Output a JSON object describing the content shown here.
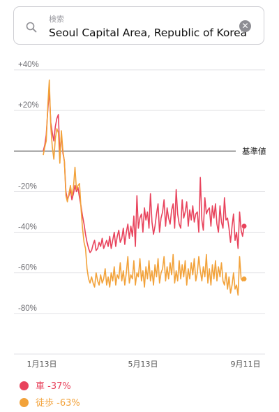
{
  "search": {
    "placeholder": "検索",
    "value": "Seoul Capital Area, Republic of Korea"
  },
  "colors": {
    "driving": "#e8435c",
    "walking": "#f2a23a",
    "baseline": "#3a3a3a",
    "grid": "#d9d9de"
  },
  "chart_data": {
    "type": "line",
    "ylim": [
      -100,
      40
    ],
    "y_ticks": [
      40,
      20,
      0,
      -20,
      -40,
      -60,
      -80,
      -100
    ],
    "y_tick_labels": [
      "+40%",
      "+20%",
      "",
      "-20%",
      "-40%",
      "-60%",
      "-80%",
      ""
    ],
    "baseline_label": "基準値",
    "x_tick_labels": [
      "1月13日",
      "5月13日",
      "9月11日"
    ],
    "series": [
      {
        "name": "車",
        "end_label": "車 -37%",
        "values": [
          0,
          3,
          8,
          20,
          30,
          14,
          9,
          5,
          12,
          16,
          18,
          -2,
          8,
          -1,
          -5,
          -20,
          -24,
          -22,
          -19,
          -24,
          -21,
          -17,
          -20,
          -18,
          -23,
          -27,
          -32,
          -36,
          -41,
          -45,
          -48,
          -50,
          -49,
          -46,
          -44,
          -49,
          -48,
          -45,
          -47,
          -43,
          -48,
          -46,
          -44,
          -47,
          -42,
          -48,
          -44,
          -40,
          -47,
          -42,
          -39,
          -45,
          -43,
          -38,
          -46,
          -40,
          -36,
          -43,
          -37,
          -42,
          -32,
          -47,
          -22,
          -38,
          -33,
          -31,
          -40,
          -28,
          -34,
          -30,
          -38,
          -21,
          -35,
          -41,
          -37,
          -31,
          -26,
          -40,
          -33,
          -30,
          -24,
          -37,
          -28,
          -33,
          -36,
          -29,
          -26,
          -38,
          -19,
          -31,
          -36,
          -38,
          -24,
          -33,
          -30,
          -25,
          -37,
          -29,
          -34,
          -27,
          -35,
          -31,
          -30,
          -40,
          -13,
          -34,
          -39,
          -23,
          -31,
          -29,
          -28,
          -37,
          -27,
          -33,
          -26,
          -36,
          -40,
          -27,
          -35,
          -38,
          -23,
          -34,
          -33,
          -38,
          -45,
          -37,
          -31,
          -44,
          -40,
          -48,
          -30,
          -39,
          -42,
          -37
        ],
        "end_value": -37
      },
      {
        "name": "徒歩",
        "end_label": "徒歩 -63%",
        "values": [
          -2,
          2,
          5,
          22,
          35,
          12,
          2,
          -4,
          6,
          11,
          9,
          -6,
          10,
          0,
          -5,
          -22,
          -25,
          -21,
          -17,
          -22,
          -18,
          -8,
          -19,
          -17,
          -16,
          -28,
          -38,
          -45,
          -48,
          -58,
          -63,
          -65,
          -62,
          -65,
          -67,
          -60,
          -64,
          -66,
          -61,
          -65,
          -63,
          -58,
          -66,
          -62,
          -67,
          -60,
          -64,
          -57,
          -66,
          -61,
          -63,
          -55,
          -64,
          -59,
          -66,
          -60,
          -52,
          -65,
          -61,
          -63,
          -54,
          -66,
          -60,
          -62,
          -53,
          -64,
          -59,
          -67,
          -57,
          -63,
          -54,
          -64,
          -59,
          -66,
          -56,
          -62,
          -53,
          -65,
          -60,
          -58,
          -52,
          -64,
          -57,
          -63,
          -55,
          -61,
          -51,
          -65,
          -59,
          -64,
          -54,
          -63,
          -56,
          -62,
          -54,
          -66,
          -58,
          -63,
          -55,
          -61,
          -53,
          -64,
          -60,
          -52,
          -59,
          -64,
          -57,
          -62,
          -51,
          -65,
          -58,
          -66,
          -56,
          -63,
          -54,
          -64,
          -57,
          -62,
          -55,
          -64,
          -66,
          -60,
          -68,
          -62,
          -70,
          -66,
          -60,
          -68,
          -66,
          -71,
          -52,
          -63,
          -64,
          -63
        ],
        "end_value": -63
      }
    ]
  }
}
